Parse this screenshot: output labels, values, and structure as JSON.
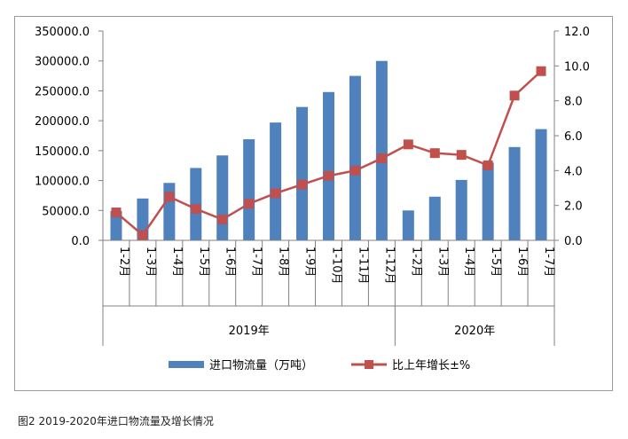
{
  "caption": "图2 2019-2020年进口物流量及增长情况",
  "chart_data": {
    "type": "bar",
    "categories": [
      "1-2月",
      "1-3月",
      "1-4月",
      "1-5月",
      "1-6月",
      "1-7月",
      "1-8月",
      "1-9月",
      "1-10月",
      "1-11月",
      "1-12月",
      "1-2月",
      "1-3月",
      "1-4月",
      "1-5月",
      "1-6月",
      "1-7月"
    ],
    "groups": [
      {
        "label": "2019年",
        "count": 11
      },
      {
        "label": "2020年",
        "count": 6
      }
    ],
    "series": [
      {
        "name": "进口物流量（万吨）",
        "type": "bar",
        "axis": "left",
        "color": "#4f81bd",
        "values": [
          49000,
          70000,
          96000,
          121000,
          142000,
          169000,
          197000,
          223000,
          248000,
          275000,
          300000,
          50000,
          73000,
          101000,
          130000,
          156000,
          186000
        ]
      },
      {
        "name": "比上年增长±%",
        "type": "line",
        "axis": "right",
        "color": "#c0504d",
        "values": [
          1.6,
          0.3,
          2.5,
          1.8,
          1.2,
          2.1,
          2.7,
          3.2,
          3.7,
          4.0,
          4.7,
          5.5,
          5.0,
          4.9,
          4.3,
          8.3,
          9.7
        ]
      }
    ],
    "y_left": {
      "min": 0,
      "max": 350000,
      "step": 50000,
      "ticks": [
        "0.0",
        "50000.0",
        "100000.0",
        "150000.0",
        "200000.0",
        "250000.0",
        "300000.0",
        "350000.0"
      ]
    },
    "y_right": {
      "min": 0,
      "max": 12,
      "step": 2,
      "ticks": [
        "0.0",
        "2.0",
        "4.0",
        "6.0",
        "8.0",
        "10.0",
        "12.0"
      ]
    },
    "legend_position": "bottom",
    "grid": false
  }
}
